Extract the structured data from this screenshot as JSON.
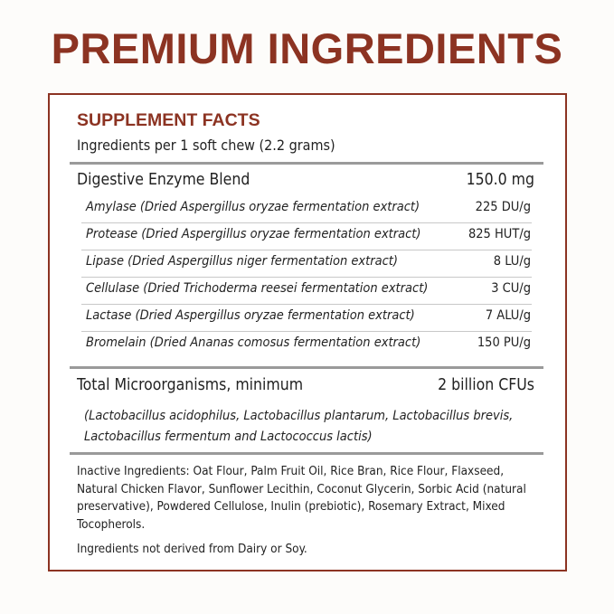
{
  "title": "PREMIUM INGREDIENTS",
  "panel": {
    "heading": "SUPPLEMENT FACTS",
    "serving": "Ingredients per 1 soft chew (2.2 grams)",
    "blend": {
      "name": "Digestive Enzyme Blend",
      "amount": "150.0 mg"
    },
    "enzymes": [
      {
        "name": "Amylase (Dried Aspergillus oryzae fermentation extract)",
        "amount": "225 DU/g"
      },
      {
        "name": "Protease (Dried Aspergillus oryzae fermentation extract)",
        "amount": "825 HUT/g"
      },
      {
        "name": "Lipase (Dried Aspergillus niger fermentation extract)",
        "amount": "8 LU/g"
      },
      {
        "name": "Cellulase (Dried Trichoderma reesei fermentation extract)",
        "amount": "3 CU/g"
      },
      {
        "name": "Lactase (Dried Aspergillus oryzae fermentation extract)",
        "amount": "7 ALU/g"
      },
      {
        "name": "Bromelain (Dried Ananas comosus fermentation extract)",
        "amount": "150 PU/g"
      }
    ],
    "microorganisms": {
      "name": "Total Microorganisms, minimum",
      "amount": "2 billion CFUs"
    },
    "strains_line1": "(Lactobacillus acidophilus, Lactobacillus plantarum, Lactobacillus brevis,",
    "strains_line2": "Lactobacillus fermentum and Lactococcus lactis)",
    "inactive": "Inactive Ingredients: Oat Flour, Palm Fruit Oil, Rice Bran, Rice Flour, Flaxseed, Natural Chicken Flavor, Sunflower Lecithin, Coconut Glycerin, Sorbic Acid (natural preservative), Powdered Cellulose, Inulin (prebiotic), Rosemary Extract, Mixed Tocopherols.",
    "note": "Ingredients not derived from Dairy or Soy."
  },
  "colors": {
    "accent": "#8c3322",
    "rule": "#9a9a9a"
  }
}
